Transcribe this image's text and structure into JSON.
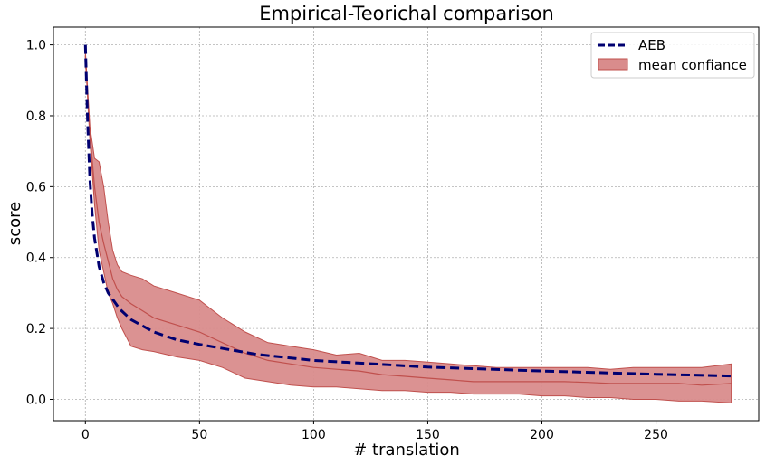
{
  "chart_data": {
    "type": "line",
    "title": "Empirical-Teorichal comparison",
    "xlabel": "# translation",
    "ylabel": "score",
    "xlim": [
      -14,
      295
    ],
    "ylim": [
      -0.06,
      1.05
    ],
    "xticks": [
      0,
      50,
      100,
      150,
      200,
      250
    ],
    "yticks": [
      0.0,
      0.2,
      0.4,
      0.6,
      0.8,
      1.0
    ],
    "xtick_labels": [
      "0",
      "50",
      "100",
      "150",
      "200",
      "250"
    ],
    "ytick_labels": [
      "0.0",
      "0.2",
      "0.4",
      "0.6",
      "0.8",
      "1.0"
    ],
    "grid": true,
    "legend_position": "top-right",
    "series": [
      {
        "name": "AEB",
        "kind": "line",
        "style": "dashed",
        "color": "#000070",
        "x": [
          0,
          1,
          2,
          3,
          4,
          6,
          8,
          10,
          15,
          20,
          30,
          40,
          50,
          75,
          100,
          150,
          200,
          250,
          283
        ],
        "y": [
          1.0,
          0.78,
          0.62,
          0.52,
          0.455,
          0.375,
          0.33,
          0.3,
          0.255,
          0.225,
          0.19,
          0.168,
          0.155,
          0.127,
          0.11,
          0.091,
          0.08,
          0.071,
          0.066
        ]
      },
      {
        "name": "mean confiance",
        "kind": "band",
        "color": "#d98c8c",
        "edge_color": "#c0504d",
        "x": [
          0,
          2,
          4,
          6,
          8,
          10,
          12,
          14,
          16,
          20,
          25,
          30,
          40,
          50,
          60,
          70,
          80,
          90,
          100,
          110,
          120,
          130,
          140,
          150,
          160,
          170,
          180,
          190,
          200,
          210,
          220,
          230,
          240,
          250,
          260,
          270,
          283
        ],
        "upper": [
          0.98,
          0.77,
          0.68,
          0.67,
          0.6,
          0.5,
          0.42,
          0.38,
          0.36,
          0.35,
          0.34,
          0.32,
          0.3,
          0.28,
          0.23,
          0.19,
          0.16,
          0.15,
          0.14,
          0.125,
          0.13,
          0.11,
          0.11,
          0.105,
          0.1,
          0.095,
          0.09,
          0.09,
          0.09,
          0.09,
          0.09,
          0.085,
          0.09,
          0.09,
          0.09,
          0.09,
          0.1
        ],
        "mean": [
          0.97,
          0.75,
          0.6,
          0.5,
          0.44,
          0.39,
          0.34,
          0.31,
          0.29,
          0.27,
          0.25,
          0.23,
          0.21,
          0.19,
          0.16,
          0.13,
          0.11,
          0.1,
          0.09,
          0.085,
          0.08,
          0.07,
          0.065,
          0.06,
          0.055,
          0.05,
          0.05,
          0.05,
          0.05,
          0.05,
          0.048,
          0.045,
          0.045,
          0.045,
          0.045,
          0.04,
          0.045
        ],
        "lower": [
          0.96,
          0.73,
          0.55,
          0.42,
          0.36,
          0.3,
          0.27,
          0.23,
          0.2,
          0.15,
          0.14,
          0.135,
          0.12,
          0.11,
          0.09,
          0.06,
          0.05,
          0.04,
          0.035,
          0.035,
          0.03,
          0.025,
          0.025,
          0.02,
          0.02,
          0.015,
          0.015,
          0.015,
          0.01,
          0.01,
          0.005,
          0.005,
          0.0,
          0.0,
          -0.005,
          -0.005,
          -0.01
        ]
      }
    ]
  }
}
